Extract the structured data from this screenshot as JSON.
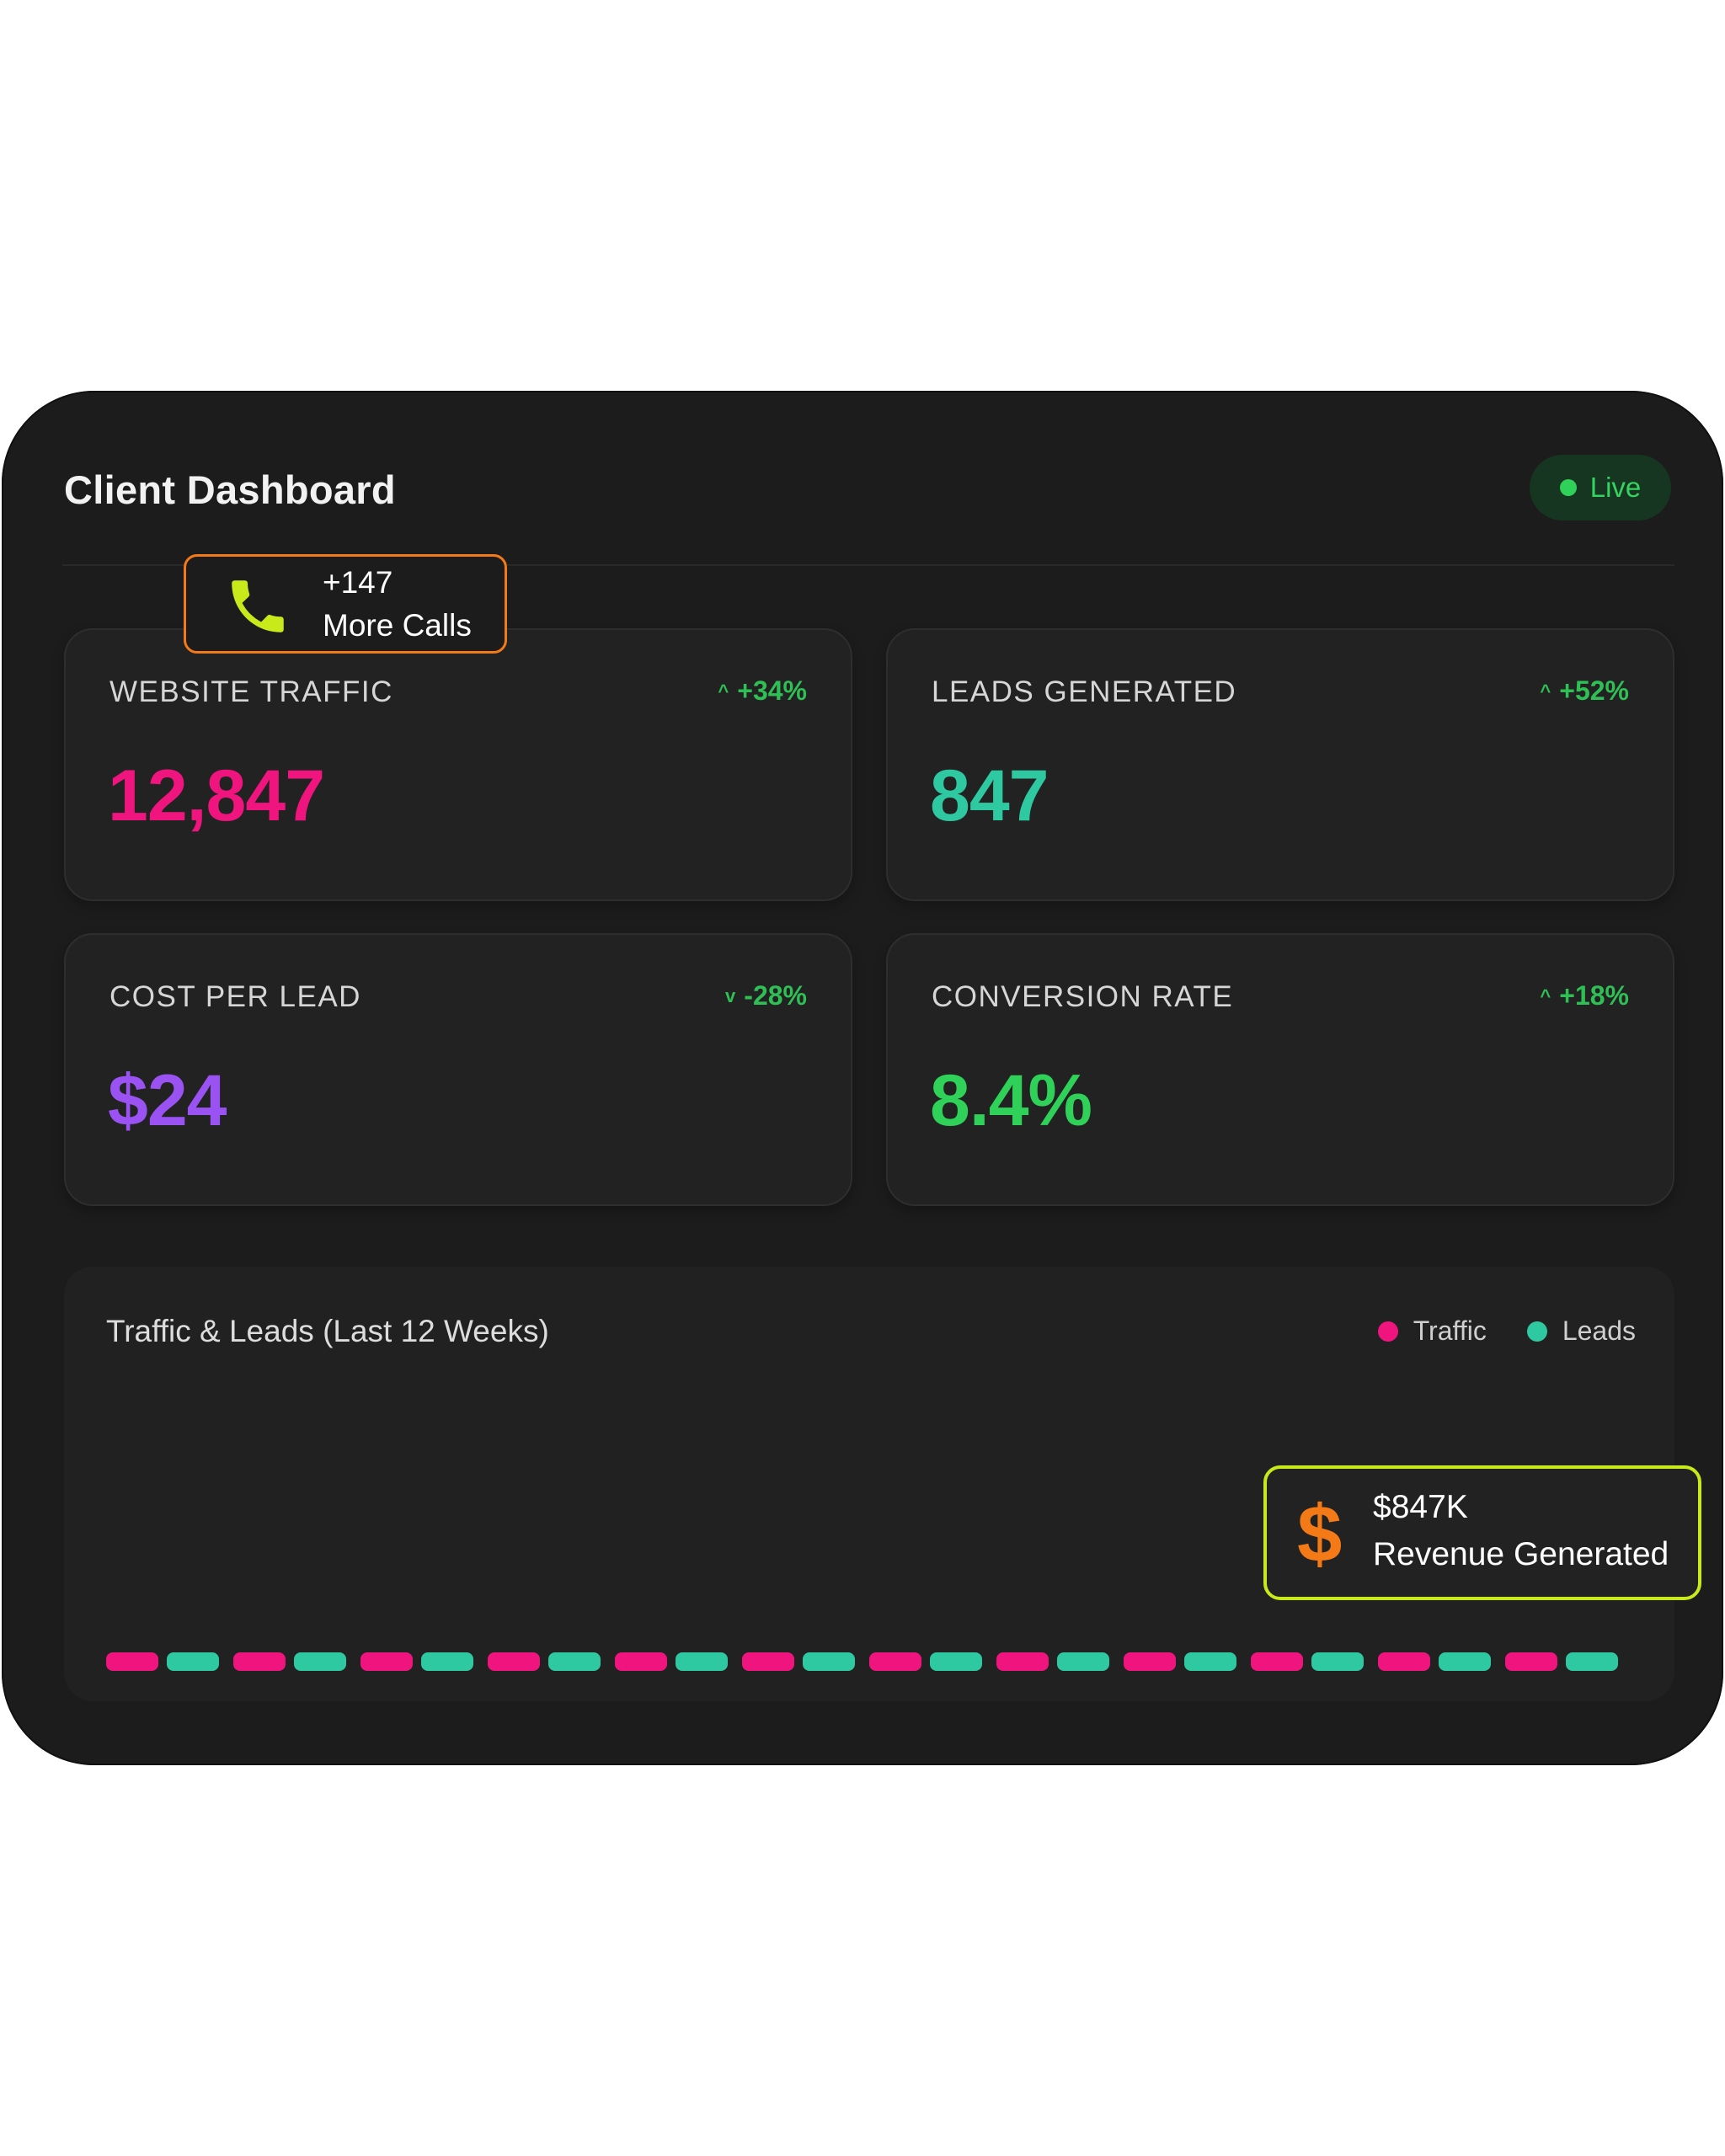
{
  "app": {
    "title": "Client Dashboard",
    "status_label": "Live"
  },
  "callouts": {
    "calls": {
      "count": "+147",
      "label": "More Calls",
      "icon": "phone-icon"
    },
    "revenue": {
      "amount": "$847K",
      "label": "Revenue Generated",
      "icon_glyph": "$"
    }
  },
  "stats": [
    {
      "label": "WEBSITE TRAFFIC",
      "change": "+34%",
      "trend": "up",
      "value": "12,847",
      "color": "#f0157e"
    },
    {
      "label": "LEADS GENERATED",
      "change": "+52%",
      "trend": "up",
      "value": "847",
      "color": "#2ec9a0"
    },
    {
      "label": "COST PER LEAD",
      "change": "-28%",
      "trend": "down",
      "value": "$24",
      "color": "#9b52f2"
    },
    {
      "label": "CONVERSION RATE",
      "change": "+18%",
      "trend": "up",
      "value": "8.4%",
      "color": "#2fd158"
    }
  ],
  "chart": {
    "title": "Traffic & Leads (Last 12 Weeks)",
    "legend": [
      {
        "name": "Traffic",
        "color": "#f0157e"
      },
      {
        "name": "Leads",
        "color": "#2ec9a0"
      }
    ]
  },
  "chart_data": {
    "type": "bar",
    "title": "Traffic & Leads (Last 12 Weeks)",
    "categories": [
      "",
      "",
      "",
      "",
      "",
      "",
      "",
      "",
      "",
      "",
      "",
      ""
    ],
    "series": [
      {
        "name": "Traffic",
        "color": "#f0157e",
        "values": [
          1,
          1,
          1,
          1,
          1,
          1,
          1,
          1,
          1,
          1,
          1,
          1
        ]
      },
      {
        "name": "Leads",
        "color": "#2ec9a0",
        "values": [
          1,
          1,
          1,
          1,
          1,
          1,
          1,
          1,
          1,
          1,
          1,
          1
        ]
      }
    ],
    "legend_position": "top-right",
    "grid": false
  }
}
